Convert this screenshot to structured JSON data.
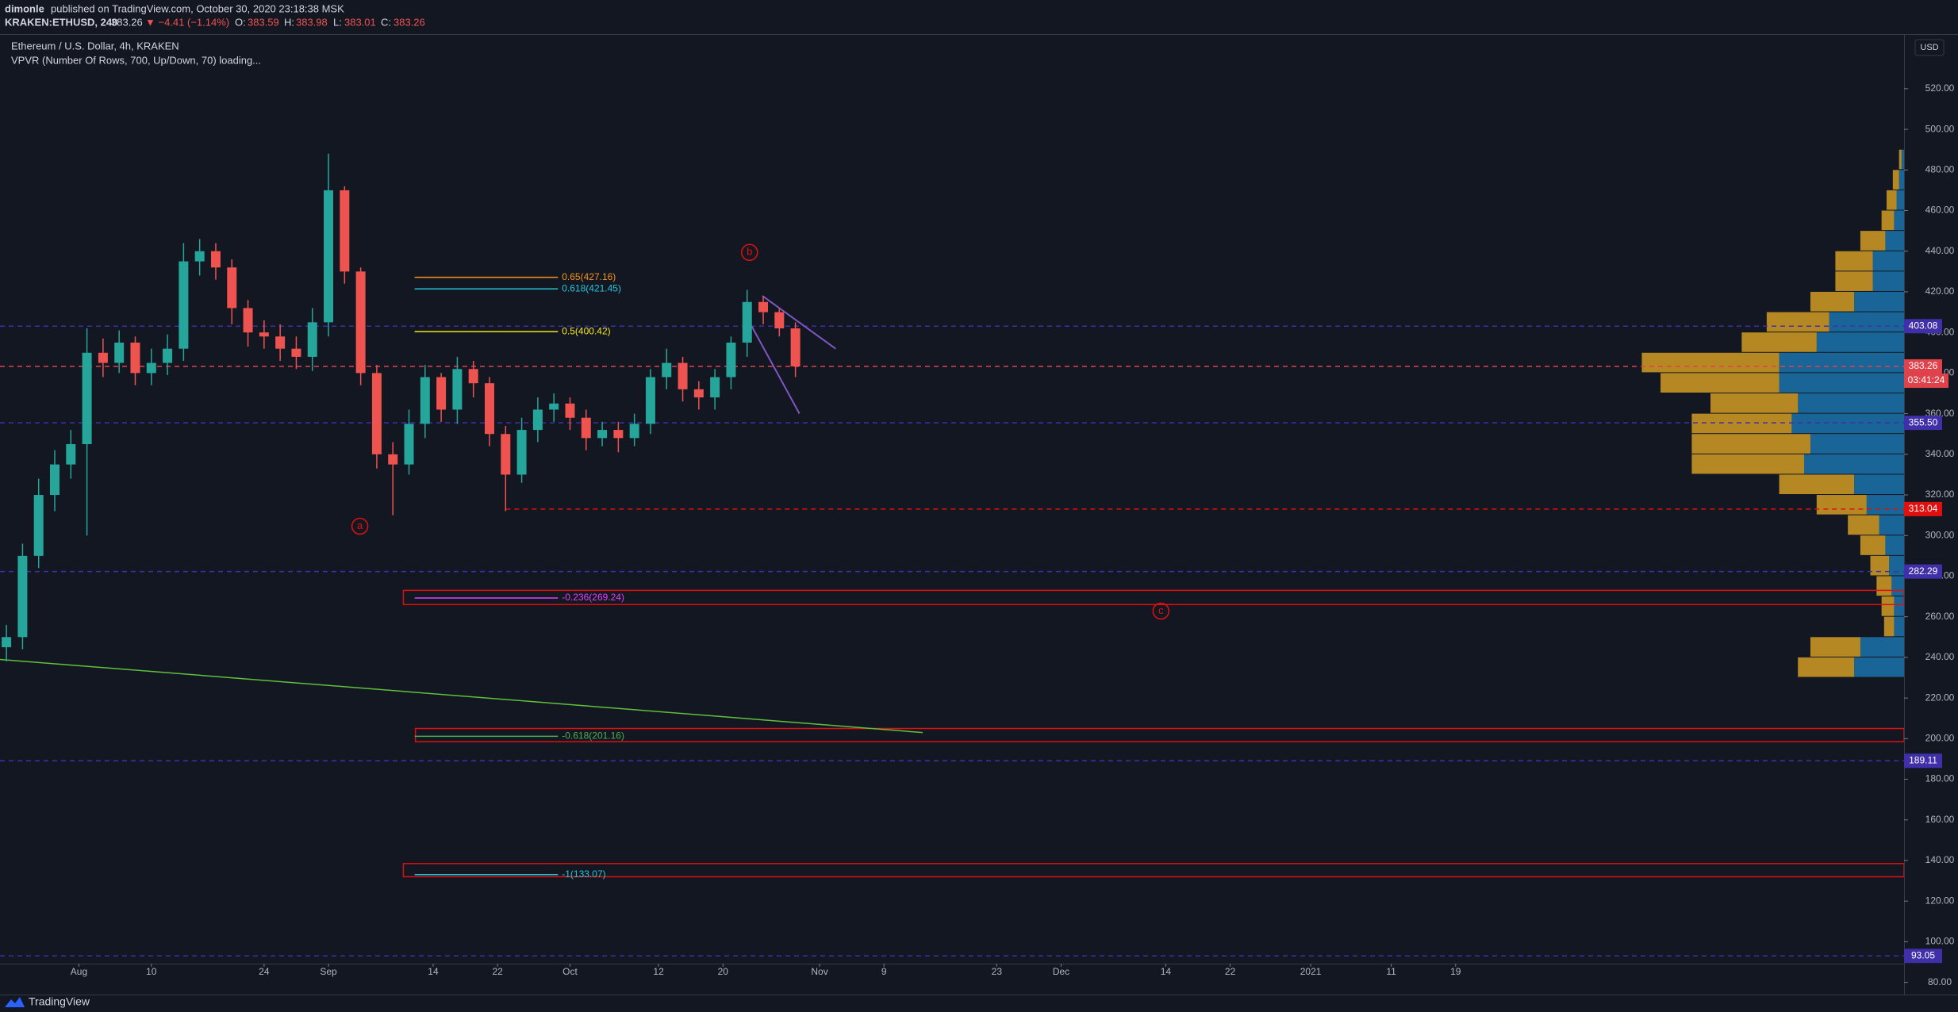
{
  "header": {
    "author": "dimonle",
    "published": "published on TradingView.com, October 30, 2020 23:18:38 MSK",
    "symbol": "KRAKEN:ETHUSD, 240",
    "last": "383.26",
    "change": "▼ −4.41 (−1.14%)",
    "o_label": "O:",
    "o": "383.59",
    "h_label": "H:",
    "h": "383.98",
    "l_label": "L:",
    "l": "383.01",
    "c_label": "C:",
    "c": "383.26"
  },
  "legend": {
    "title": "Ethereum / U.S. Dollar, 4h, KRAKEN",
    "indicator": "VPVR (Number Of Rows, 700, Up/Down, 70) loading..."
  },
  "currency": "USD",
  "footer": "TradingView",
  "chart_data": {
    "type": "candlestick",
    "x": [
      -9,
      -7,
      -5,
      -3,
      -1,
      1,
      3,
      5,
      7,
      9,
      11,
      13,
      15,
      17,
      19,
      21,
      23,
      25,
      27,
      29,
      31,
      33,
      35,
      37,
      39,
      41,
      43,
      45,
      47,
      49,
      51,
      53,
      55,
      57,
      59,
      61,
      63,
      65,
      67,
      69,
      71,
      73,
      75,
      77,
      79,
      81,
      83,
      85,
      87,
      89
    ],
    "open": [
      245,
      250,
      290,
      320,
      335,
      345,
      390,
      385,
      395,
      380,
      385,
      392,
      435,
      440,
      432,
      412,
      400,
      398,
      392,
      388,
      405,
      470,
      430,
      380,
      340,
      335,
      355,
      378,
      362,
      382,
      375,
      350,
      330,
      352,
      362,
      365,
      358,
      348,
      352,
      348,
      355,
      378,
      385,
      372,
      368,
      378,
      395,
      415,
      410,
      402
    ],
    "high": [
      256,
      296,
      328,
      342,
      352,
      402,
      397,
      401,
      398,
      392,
      399,
      444,
      446,
      444,
      436,
      416,
      406,
      404,
      398,
      412,
      488,
      472,
      432,
      384,
      346,
      362,
      384,
      380,
      388,
      386,
      378,
      354,
      358,
      368,
      370,
      368,
      362,
      356,
      356,
      360,
      382,
      392,
      388,
      376,
      382,
      398,
      421,
      418,
      412,
      405
    ],
    "low": [
      238,
      244,
      284,
      312,
      328,
      300,
      378,
      380,
      374,
      374,
      379,
      386,
      428,
      426,
      404,
      393,
      392,
      386,
      382,
      381,
      398,
      424,
      374,
      333,
      310,
      330,
      348,
      356,
      355,
      368,
      344,
      312,
      326,
      346,
      356,
      352,
      342,
      344,
      341,
      344,
      350,
      372,
      366,
      362,
      362,
      372,
      388,
      404,
      398,
      378
    ],
    "close": [
      250,
      290,
      320,
      335,
      345,
      390,
      385,
      395,
      380,
      385,
      392,
      435,
      440,
      432,
      412,
      400,
      398,
      392,
      388,
      405,
      470,
      430,
      380,
      340,
      335,
      355,
      378,
      362,
      382,
      375,
      350,
      330,
      352,
      362,
      365,
      358,
      348,
      352,
      348,
      355,
      378,
      385,
      372,
      368,
      378,
      395,
      415,
      410,
      402,
      383.26
    ],
    "up_color": "#26a69a",
    "down_color": "#ef5350",
    "xlim": [
      -9.8,
      226.7
    ],
    "ylim": [
      74,
      546.5
    ],
    "xticks": [
      {
        "value": 0,
        "label": "Aug"
      },
      {
        "value": 9,
        "label": "10"
      },
      {
        "value": 23,
        "label": "24"
      },
      {
        "value": 31,
        "label": "Sep"
      },
      {
        "value": 44,
        "label": "14"
      },
      {
        "value": 52,
        "label": "22"
      },
      {
        "value": 61,
        "label": "Oct"
      },
      {
        "value": 72,
        "label": "12"
      },
      {
        "value": 80,
        "label": "20"
      },
      {
        "value": 92,
        "label": "Nov"
      },
      {
        "value": 100,
        "label": "9"
      },
      {
        "value": 114,
        "label": "23"
      },
      {
        "value": 122,
        "label": "Dec"
      },
      {
        "value": 135,
        "label": "14"
      },
      {
        "value": 143,
        "label": "22"
      },
      {
        "value": 153,
        "label": "2021"
      },
      {
        "value": 163,
        "label": "11"
      },
      {
        "value": 171,
        "label": "19"
      }
    ],
    "yticks": [
      {
        "value": 80,
        "label": "80.00"
      },
      {
        "value": 100,
        "label": "100.00"
      },
      {
        "value": 120,
        "label": "120.00"
      },
      {
        "value": 140,
        "label": "140.00"
      },
      {
        "value": 160,
        "label": "160.00"
      },
      {
        "value": 180,
        "label": "180.00"
      },
      {
        "value": 200,
        "label": "200.00"
      },
      {
        "value": 220,
        "label": "220.00"
      },
      {
        "value": 240,
        "label": "240.00"
      },
      {
        "value": 260,
        "label": "260.00"
      },
      {
        "value": 280,
        "label": "280.00"
      },
      {
        "value": 300,
        "label": "300.00"
      },
      {
        "value": 320,
        "label": "320.00"
      },
      {
        "value": 340,
        "label": "340.00"
      },
      {
        "value": 360,
        "label": "360.00"
      },
      {
        "value": 380,
        "label": "380.00"
      },
      {
        "value": 400,
        "label": "400.00"
      },
      {
        "value": 420,
        "label": "420.00"
      },
      {
        "value": 440,
        "label": "440.00"
      },
      {
        "value": 460,
        "label": "460.00"
      },
      {
        "value": 480,
        "label": "480.00"
      },
      {
        "value": 500,
        "label": "500.00"
      },
      {
        "value": 520,
        "label": "520.00"
      }
    ],
    "price_lines": [
      {
        "value": 403.08,
        "color": "#3f2fa8"
      },
      {
        "value": 383.26,
        "color": "#e0424b",
        "countdown": "03:41:24"
      },
      {
        "value": 355.5,
        "label": "355.50",
        "color": "#3f2fa8"
      },
      {
        "value": 313.04,
        "color": "#e01010",
        "start": 53
      },
      {
        "value": 282.29,
        "color": "#3f2fa8"
      },
      {
        "value": 189.11,
        "color": "#3f2fa8"
      },
      {
        "value": 93.05,
        "color": "#3f2fa8"
      }
    ],
    "fib_levels": [
      {
        "label": "0.65(427.16)",
        "value": 427.16,
        "color": "#f7931a",
        "start": 41.7,
        "end": 59.5
      },
      {
        "label": "0.618(421.45)",
        "value": 421.45,
        "color": "#26c6da",
        "start": 41.7,
        "end": 59.5
      },
      {
        "label": "0.5(400.42)",
        "value": 400.42,
        "color": "#f5e61b",
        "start": 41.7,
        "end": 59.5
      },
      {
        "label": "-0.236(269.24)",
        "value": 269.24,
        "color": "#e040fb",
        "start": 41.7,
        "end": 59.5
      },
      {
        "label": "-0.618(201.16)",
        "value": 201.16,
        "color": "#4caf50",
        "start": 41.7,
        "end": 59.5
      },
      {
        "label": "-1(133.07)",
        "value": 133.07,
        "color": "#26c6da",
        "start": 41.7,
        "end": 59.5
      }
    ],
    "boxes": [
      {
        "top": 273,
        "bottom": 266,
        "start": 40.3
      },
      {
        "top": 205,
        "bottom": 198.5,
        "start": 41.8
      },
      {
        "top": 138.5,
        "bottom": 132,
        "start": 40.3
      }
    ],
    "trendline": {
      "x": [
        -9.8,
        104.8
      ],
      "y": [
        239,
        203
      ],
      "color": "#5fc13a"
    },
    "wedge": [
      {
        "x": [
          84.9,
          94
        ],
        "y": [
          418,
          392
        ]
      },
      {
        "x": [
          83.3,
          89.5
        ],
        "y": [
          405,
          360
        ]
      }
    ],
    "waves": [
      {
        "label": "a",
        "x": 34.9,
        "y": 304.6
      },
      {
        "label": "b",
        "x": 83.3,
        "y": 439.4
      },
      {
        "label": "c",
        "x": 134.4,
        "y": 262.8
      }
    ],
    "volume_profile": {
      "prices": [
        235,
        245,
        255,
        265,
        275,
        285,
        295,
        305,
        315,
        325,
        335,
        345,
        355,
        365,
        375,
        385,
        395,
        405,
        415,
        425,
        435,
        445,
        455,
        465,
        475,
        485
      ],
      "up": [
        40,
        35,
        8,
        8,
        10,
        12,
        15,
        20,
        30,
        40,
        80,
        75,
        90,
        85,
        100,
        100,
        70,
        60,
        40,
        25,
        25,
        15,
        8,
        6,
        4,
        2
      ],
      "down": [
        45,
        40,
        8,
        10,
        12,
        15,
        20,
        25,
        40,
        60,
        90,
        95,
        80,
        70,
        95,
        110,
        60,
        50,
        35,
        30,
        30,
        20,
        10,
        8,
        5,
        2
      ],
      "up_color": "#1e88c9",
      "down_color": "#e0a526",
      "step": 10
    }
  }
}
